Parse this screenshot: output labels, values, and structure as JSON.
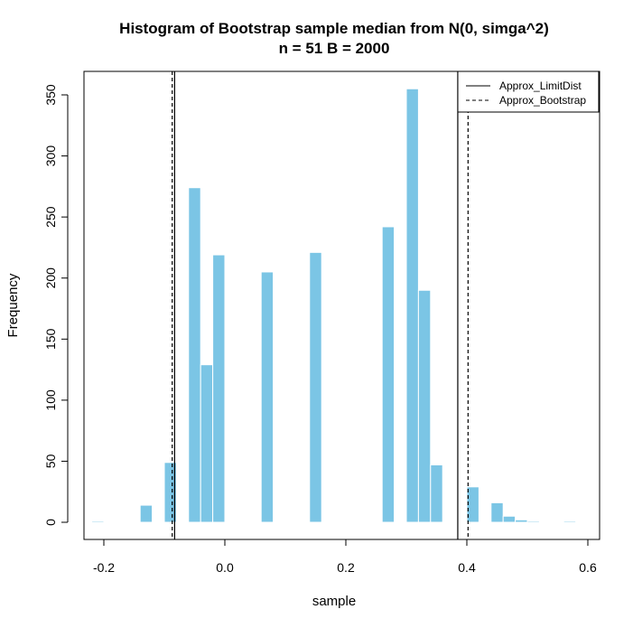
{
  "chart_data": {
    "type": "bar",
    "title_line1": "Histogram of Bootstrap sample median from N(0, simga^2)",
    "title_line2": "n = 51 B = 2000",
    "xlabel": "sample",
    "ylabel": "Frequency",
    "xlim": [
      -0.2,
      0.6
    ],
    "ylim": [
      0,
      350
    ],
    "xticks": [
      "-0.2",
      "0.0",
      "0.2",
      "0.4",
      "0.6"
    ],
    "xtick_values": [
      -0.2,
      0.0,
      0.2,
      0.4,
      0.6
    ],
    "yticks": [
      "0",
      "50",
      "100",
      "150",
      "200",
      "250",
      "300",
      "350"
    ],
    "ytick_values": [
      0,
      50,
      100,
      150,
      200,
      250,
      300,
      350
    ],
    "bar_color": "#7BC5E5",
    "bin_width": 0.02,
    "bins": [
      {
        "x0": -0.22,
        "x1": -0.2,
        "count": 1
      },
      {
        "x0": -0.14,
        "x1": -0.12,
        "count": 14
      },
      {
        "x0": -0.1,
        "x1": -0.08,
        "count": 49
      },
      {
        "x0": -0.06,
        "x1": -0.04,
        "count": 274
      },
      {
        "x0": -0.04,
        "x1": -0.02,
        "count": 129
      },
      {
        "x0": -0.02,
        "x1": 0.0,
        "count": 219
      },
      {
        "x0": 0.06,
        "x1": 0.08,
        "count": 205
      },
      {
        "x0": 0.14,
        "x1": 0.16,
        "count": 221
      },
      {
        "x0": 0.26,
        "x1": 0.28,
        "count": 242
      },
      {
        "x0": 0.3,
        "x1": 0.32,
        "count": 355
      },
      {
        "x0": 0.32,
        "x1": 0.34,
        "count": 190
      },
      {
        "x0": 0.34,
        "x1": 0.36,
        "count": 47
      },
      {
        "x0": 0.4,
        "x1": 0.42,
        "count": 29
      },
      {
        "x0": 0.44,
        "x1": 0.46,
        "count": 16
      },
      {
        "x0": 0.46,
        "x1": 0.48,
        "count": 5
      },
      {
        "x0": 0.48,
        "x1": 0.5,
        "count": 2
      },
      {
        "x0": 0.5,
        "x1": 0.52,
        "count": 1
      },
      {
        "x0": 0.56,
        "x1": 0.58,
        "count": 1
      }
    ],
    "vlines": [
      {
        "name": "Approx_LimitDist",
        "style": "solid",
        "x": [
          -0.083,
          0.385
        ]
      },
      {
        "name": "Approx_Bootstrap",
        "style": "dashed",
        "x": [
          -0.087,
          0.402
        ]
      }
    ],
    "legend": {
      "position": "top-right",
      "entries": [
        {
          "label": "Approx_LimitDist",
          "style": "solid"
        },
        {
          "label": "Approx_Bootstrap",
          "style": "dashed"
        }
      ]
    }
  }
}
